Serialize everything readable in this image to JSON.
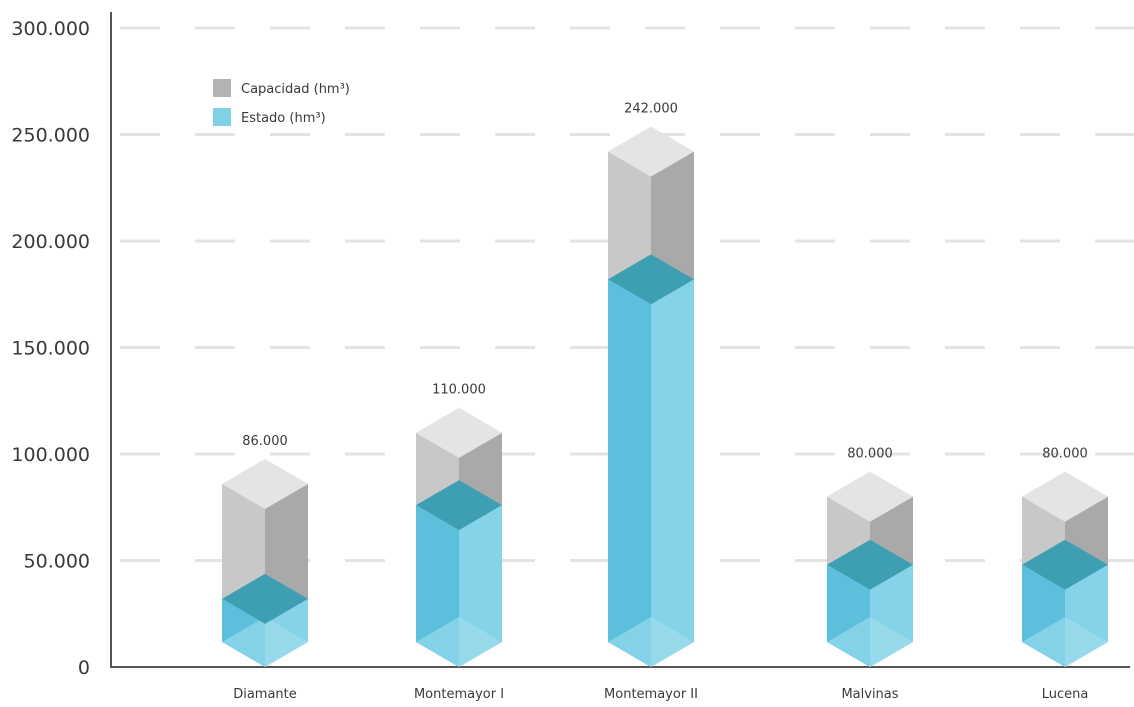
{
  "chart_data": {
    "type": "bar",
    "categories": [
      "Diamante",
      "Montemayor I",
      "Montemayor II",
      "Malvinas",
      "Lucena"
    ],
    "series": [
      {
        "name": "Capacidad (hm³)",
        "values": [
          86000,
          110000,
          242000,
          80000,
          80000
        ],
        "color": "#b9b9b9"
      },
      {
        "name": "Estado (hm³)",
        "values": [
          32000,
          76000,
          182000,
          48000,
          48000
        ],
        "color": "#7fd1e6"
      }
    ],
    "data_labels": [
      "86.000",
      "110.000",
      "242.000",
      "80.000",
      "80.000"
    ],
    "y_ticks": [
      "0",
      "50.000",
      "100.000",
      "150.000",
      "200.000",
      "250.000",
      "300.000"
    ],
    "y_tick_values": [
      0,
      50000,
      100000,
      150000,
      200000,
      250000,
      300000
    ],
    "ylim": [
      0,
      300000
    ],
    "grid": true,
    "legend": "top-left"
  }
}
